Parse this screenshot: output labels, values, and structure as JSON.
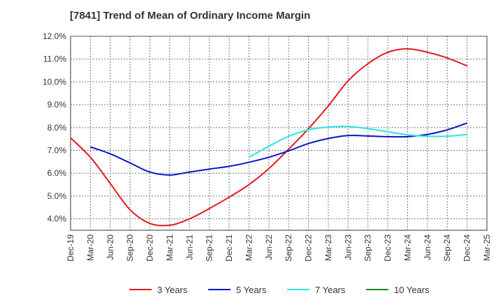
{
  "chart_data": {
    "type": "line",
    "title": "[7841]  Trend of Mean of Ordinary Income Margin",
    "xlabel": "",
    "ylabel": "",
    "x": [
      "Dec-19",
      "Mar-20",
      "Jun-20",
      "Sep-20",
      "Dec-20",
      "Mar-21",
      "Jun-21",
      "Sep-21",
      "Dec-21",
      "Mar-22",
      "Jun-22",
      "Sep-22",
      "Dec-22",
      "Mar-23",
      "Jun-23",
      "Sep-23",
      "Dec-23",
      "Mar-24",
      "Jun-24",
      "Sep-24",
      "Dec-24",
      "Mar-25"
    ],
    "ylim": [
      3.5,
      12.0
    ],
    "yticks": [
      "4.0%",
      "5.0%",
      "6.0%",
      "7.0%",
      "8.0%",
      "9.0%",
      "10.0%",
      "11.0%",
      "12.0%"
    ],
    "ytick_values": [
      4,
      5,
      6,
      7,
      8,
      9,
      10,
      11,
      12
    ],
    "grid": true,
    "legend_position": "bottom",
    "series": [
      {
        "name": "3 Years",
        "color": "#e31a1c",
        "values": [
          7.55,
          6.7,
          5.55,
          4.4,
          3.8,
          3.72,
          4.0,
          4.45,
          4.95,
          5.5,
          6.2,
          7.05,
          7.95,
          8.95,
          10.05,
          10.8,
          11.3,
          11.45,
          11.3,
          11.05,
          10.7,
          null
        ]
      },
      {
        "name": "5 Years",
        "color": "#0a14c8",
        "values": [
          null,
          7.15,
          6.85,
          6.45,
          6.05,
          5.92,
          6.05,
          6.18,
          6.3,
          6.48,
          6.7,
          6.98,
          7.3,
          7.52,
          7.65,
          7.63,
          7.6,
          7.6,
          7.7,
          7.9,
          8.2,
          null
        ]
      },
      {
        "name": "7 Years",
        "color": "#22e6e6",
        "values": [
          null,
          null,
          null,
          null,
          null,
          null,
          null,
          null,
          null,
          6.7,
          7.18,
          7.62,
          7.9,
          8.02,
          8.05,
          7.95,
          7.82,
          7.68,
          7.62,
          7.62,
          7.7,
          null
        ]
      },
      {
        "name": "10 Years",
        "color": "#1a8a1a",
        "values": [
          null,
          null,
          null,
          null,
          null,
          null,
          null,
          null,
          null,
          null,
          null,
          null,
          null,
          null,
          null,
          null,
          null,
          null,
          null,
          null,
          null,
          null
        ]
      }
    ]
  }
}
